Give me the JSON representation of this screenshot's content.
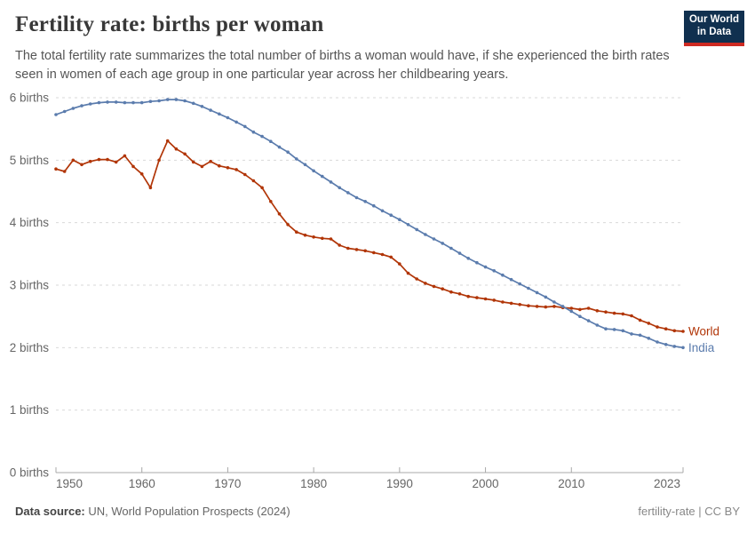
{
  "header": {
    "title": "Fertility rate: births per woman",
    "subtitle": "The total fertility rate summarizes the total number of births a woman would have, if she experienced the birth rates seen in women of each age group in one particular year across her childbearing years."
  },
  "logo": {
    "line1": "Our World",
    "line2": "in Data",
    "bg_color": "#10304F",
    "accent_color": "#CE2A22"
  },
  "footer": {
    "source_label": "Data source:",
    "source_text": " UN, World Population Prospects (2024)",
    "license": "fertility-rate | CC BY"
  },
  "chart_data": {
    "type": "line",
    "title": "Fertility rate: births per woman",
    "xlabel": "",
    "ylabel": "births per woman",
    "ylim": [
      0,
      6
    ],
    "xlim": [
      1950,
      2023
    ],
    "grid": "horizontal-dashed",
    "legend_position": "end-of-line-labels",
    "yticks": [
      {
        "value": 0,
        "label": "0 births"
      },
      {
        "value": 1,
        "label": "1 births"
      },
      {
        "value": 2,
        "label": "2 births"
      },
      {
        "value": 3,
        "label": "3 births"
      },
      {
        "value": 4,
        "label": "4 births"
      },
      {
        "value": 5,
        "label": "5 births"
      },
      {
        "value": 6,
        "label": "6 births"
      }
    ],
    "xticks": [
      {
        "value": 1950,
        "label": "1950"
      },
      {
        "value": 1960,
        "label": "1960"
      },
      {
        "value": 1970,
        "label": "1970"
      },
      {
        "value": 1980,
        "label": "1980"
      },
      {
        "value": 1990,
        "label": "1990"
      },
      {
        "value": 2000,
        "label": "2000"
      },
      {
        "value": 2010,
        "label": "2010"
      },
      {
        "value": 2023,
        "label": "2023"
      }
    ],
    "x": [
      1950,
      1951,
      1952,
      1953,
      1954,
      1955,
      1956,
      1957,
      1958,
      1959,
      1960,
      1961,
      1962,
      1963,
      1964,
      1965,
      1966,
      1967,
      1968,
      1969,
      1970,
      1971,
      1972,
      1973,
      1974,
      1975,
      1976,
      1977,
      1978,
      1979,
      1980,
      1981,
      1982,
      1983,
      1984,
      1985,
      1986,
      1987,
      1988,
      1989,
      1990,
      1991,
      1992,
      1993,
      1994,
      1995,
      1996,
      1997,
      1998,
      1999,
      2000,
      2001,
      2002,
      2003,
      2004,
      2005,
      2006,
      2007,
      2008,
      2009,
      2010,
      2011,
      2012,
      2013,
      2014,
      2015,
      2016,
      2017,
      2018,
      2019,
      2020,
      2021,
      2022,
      2023
    ],
    "series": [
      {
        "name": "World",
        "color": "#B13507",
        "values": [
          4.86,
          4.82,
          5.0,
          4.93,
          4.98,
          5.01,
          5.01,
          4.97,
          5.07,
          4.9,
          4.78,
          4.56,
          5.0,
          5.31,
          5.18,
          5.1,
          4.97,
          4.9,
          4.98,
          4.91,
          4.88,
          4.85,
          4.77,
          4.67,
          4.56,
          4.34,
          4.14,
          3.97,
          3.85,
          3.8,
          3.77,
          3.75,
          3.74,
          3.64,
          3.59,
          3.57,
          3.55,
          3.52,
          3.49,
          3.45,
          3.34,
          3.19,
          3.1,
          3.03,
          2.98,
          2.94,
          2.89,
          2.86,
          2.82,
          2.8,
          2.78,
          2.76,
          2.73,
          2.71,
          2.69,
          2.67,
          2.66,
          2.65,
          2.66,
          2.64,
          2.63,
          2.61,
          2.63,
          2.59,
          2.57,
          2.55,
          2.54,
          2.51,
          2.44,
          2.39,
          2.33,
          2.3,
          2.27,
          2.26
        ]
      },
      {
        "name": "India",
        "color": "#5B7CAD",
        "values": [
          5.73,
          5.78,
          5.83,
          5.87,
          5.9,
          5.92,
          5.93,
          5.93,
          5.92,
          5.92,
          5.92,
          5.94,
          5.95,
          5.97,
          5.97,
          5.95,
          5.91,
          5.86,
          5.8,
          5.74,
          5.68,
          5.61,
          5.54,
          5.45,
          5.38,
          5.3,
          5.21,
          5.13,
          5.02,
          4.93,
          4.83,
          4.74,
          4.65,
          4.56,
          4.48,
          4.4,
          4.34,
          4.27,
          4.19,
          4.12,
          4.05,
          3.97,
          3.89,
          3.81,
          3.74,
          3.67,
          3.59,
          3.51,
          3.43,
          3.36,
          3.29,
          3.23,
          3.16,
          3.09,
          3.02,
          2.95,
          2.88,
          2.81,
          2.73,
          2.66,
          2.58,
          2.5,
          2.43,
          2.36,
          2.3,
          2.29,
          2.27,
          2.22,
          2.2,
          2.15,
          2.09,
          2.05,
          2.02,
          2.0
        ]
      }
    ]
  }
}
